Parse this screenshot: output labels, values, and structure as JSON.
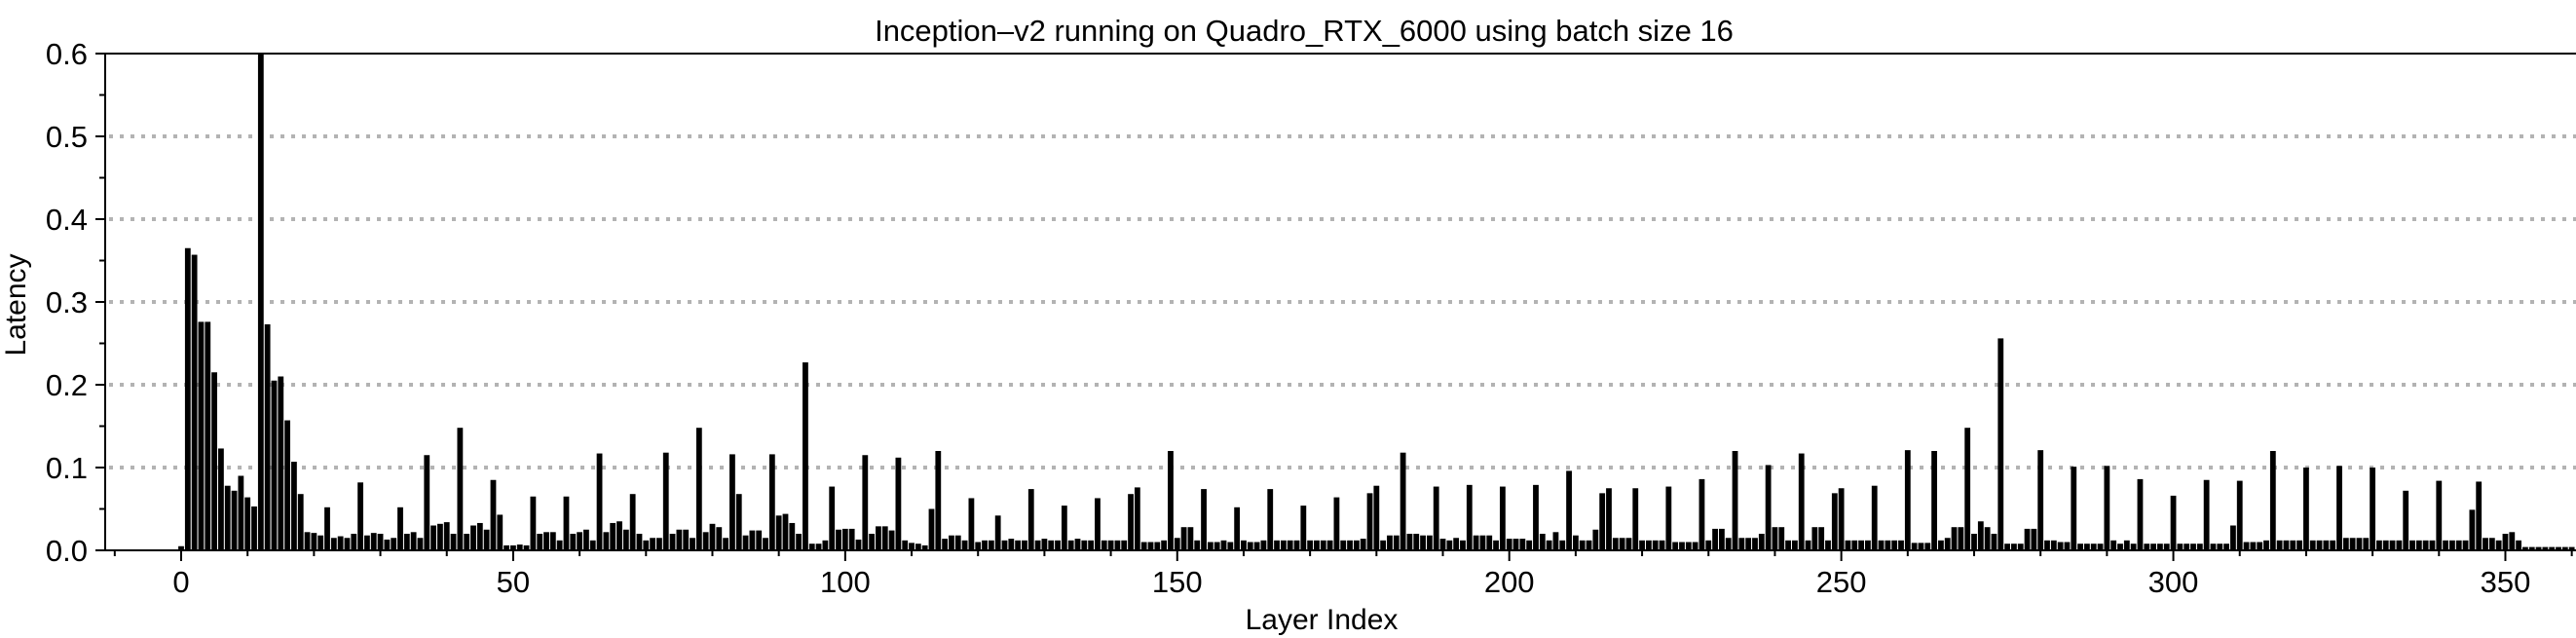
{
  "chart_data": {
    "type": "bar",
    "title": "Inception–v2 running on Quadro_RTX_6000 using batch size 16",
    "xlabel": "Layer Index",
    "ylabel": "Latency",
    "x_start": 0,
    "xticks": [
      0,
      50,
      100,
      150,
      200,
      250,
      300,
      350
    ],
    "x_minor_step": 10,
    "yticks": [
      0.0,
      0.1,
      0.2,
      0.3,
      0.4,
      0.5,
      0.6
    ],
    "y_minor_step": 0.05,
    "ylim": [
      0,
      0.6
    ],
    "xlim_layers": [
      -11.4,
      360.6
    ],
    "grid": "horizontal-dotted",
    "legend": "none",
    "bar_color": "#000000",
    "grid_color": "#b3b3b3",
    "axis_color": "#000000",
    "background_color": "#ffffff",
    "values": [
      0.005,
      0.365,
      0.357,
      0.276,
      0.276,
      0.215,
      0.123,
      0.078,
      0.072,
      0.09,
      0.064,
      0.053,
      0.61,
      0.273,
      0.205,
      0.21,
      0.157,
      0.107,
      0.068,
      0.022,
      0.021,
      0.018,
      0.052,
      0.015,
      0.017,
      0.015,
      0.02,
      0.082,
      0.018,
      0.021,
      0.02,
      0.013,
      0.015,
      0.052,
      0.02,
      0.022,
      0.015,
      0.115,
      0.03,
      0.032,
      0.034,
      0.02,
      0.148,
      0.02,
      0.03,
      0.033,
      0.025,
      0.085,
      0.043,
      0.006,
      0.006,
      0.007,
      0.006,
      0.065,
      0.02,
      0.022,
      0.022,
      0.012,
      0.065,
      0.02,
      0.022,
      0.025,
      0.012,
      0.117,
      0.022,
      0.033,
      0.035,
      0.025,
      0.068,
      0.02,
      0.012,
      0.015,
      0.015,
      0.118,
      0.02,
      0.025,
      0.025,
      0.015,
      0.148,
      0.022,
      0.032,
      0.028,
      0.015,
      0.116,
      0.068,
      0.018,
      0.024,
      0.024,
      0.015,
      0.116,
      0.042,
      0.044,
      0.033,
      0.02,
      0.227,
      0.008,
      0.008,
      0.012,
      0.077,
      0.025,
      0.026,
      0.026,
      0.013,
      0.115,
      0.02,
      0.029,
      0.029,
      0.024,
      0.112,
      0.012,
      0.009,
      0.008,
      0.006,
      0.05,
      0.12,
      0.014,
      0.018,
      0.018,
      0.012,
      0.063,
      0.01,
      0.012,
      0.012,
      0.042,
      0.012,
      0.014,
      0.012,
      0.012,
      0.074,
      0.012,
      0.014,
      0.012,
      0.012,
      0.054,
      0.012,
      0.014,
      0.012,
      0.012,
      0.063,
      0.012,
      0.012,
      0.012,
      0.012,
      0.068,
      0.076,
      0.01,
      0.01,
      0.01,
      0.012,
      0.12,
      0.015,
      0.028,
      0.028,
      0.012,
      0.074,
      0.01,
      0.01,
      0.012,
      0.01,
      0.052,
      0.012,
      0.01,
      0.01,
      0.012,
      0.074,
      0.012,
      0.012,
      0.012,
      0.012,
      0.054,
      0.012,
      0.012,
      0.012,
      0.012,
      0.064,
      0.012,
      0.012,
      0.012,
      0.014,
      0.069,
      0.078,
      0.012,
      0.018,
      0.018,
      0.118,
      0.02,
      0.02,
      0.018,
      0.018,
      0.077,
      0.014,
      0.012,
      0.015,
      0.012,
      0.079,
      0.018,
      0.018,
      0.018,
      0.012,
      0.077,
      0.014,
      0.014,
      0.014,
      0.012,
      0.079,
      0.02,
      0.012,
      0.022,
      0.012,
      0.096,
      0.018,
      0.012,
      0.012,
      0.025,
      0.069,
      0.075,
      0.015,
      0.015,
      0.015,
      0.075,
      0.012,
      0.012,
      0.012,
      0.012,
      0.077,
      0.01,
      0.01,
      0.01,
      0.01,
      0.086,
      0.012,
      0.026,
      0.026,
      0.015,
      0.12,
      0.015,
      0.015,
      0.015,
      0.02,
      0.103,
      0.028,
      0.028,
      0.012,
      0.012,
      0.117,
      0.012,
      0.028,
      0.028,
      0.012,
      0.069,
      0.075,
      0.012,
      0.012,
      0.012,
      0.012,
      0.078,
      0.012,
      0.012,
      0.012,
      0.012,
      0.121,
      0.009,
      0.009,
      0.009,
      0.12,
      0.012,
      0.015,
      0.028,
      0.028,
      0.148,
      0.02,
      0.035,
      0.028,
      0.02,
      0.256,
      0.008,
      0.008,
      0.008,
      0.026,
      0.026,
      0.121,
      0.012,
      0.012,
      0.01,
      0.01,
      0.101,
      0.008,
      0.008,
      0.008,
      0.008,
      0.102,
      0.012,
      0.008,
      0.012,
      0.008,
      0.086,
      0.008,
      0.008,
      0.008,
      0.008,
      0.066,
      0.008,
      0.008,
      0.008,
      0.008,
      0.085,
      0.008,
      0.008,
      0.008,
      0.03,
      0.084,
      0.01,
      0.01,
      0.01,
      0.012,
      0.12,
      0.012,
      0.012,
      0.012,
      0.012,
      0.1,
      0.012,
      0.012,
      0.012,
      0.012,
      0.102,
      0.015,
      0.015,
      0.015,
      0.015,
      0.1,
      0.012,
      0.012,
      0.012,
      0.012,
      0.072,
      0.012,
      0.012,
      0.012,
      0.012,
      0.084,
      0.012,
      0.012,
      0.012,
      0.012,
      0.049,
      0.083,
      0.015,
      0.015,
      0.012,
      0.02,
      0.022,
      0.012,
      0.004,
      0.004,
      0.004,
      0.004,
      0.004,
      0.004,
      0.004,
      0.004
    ]
  }
}
